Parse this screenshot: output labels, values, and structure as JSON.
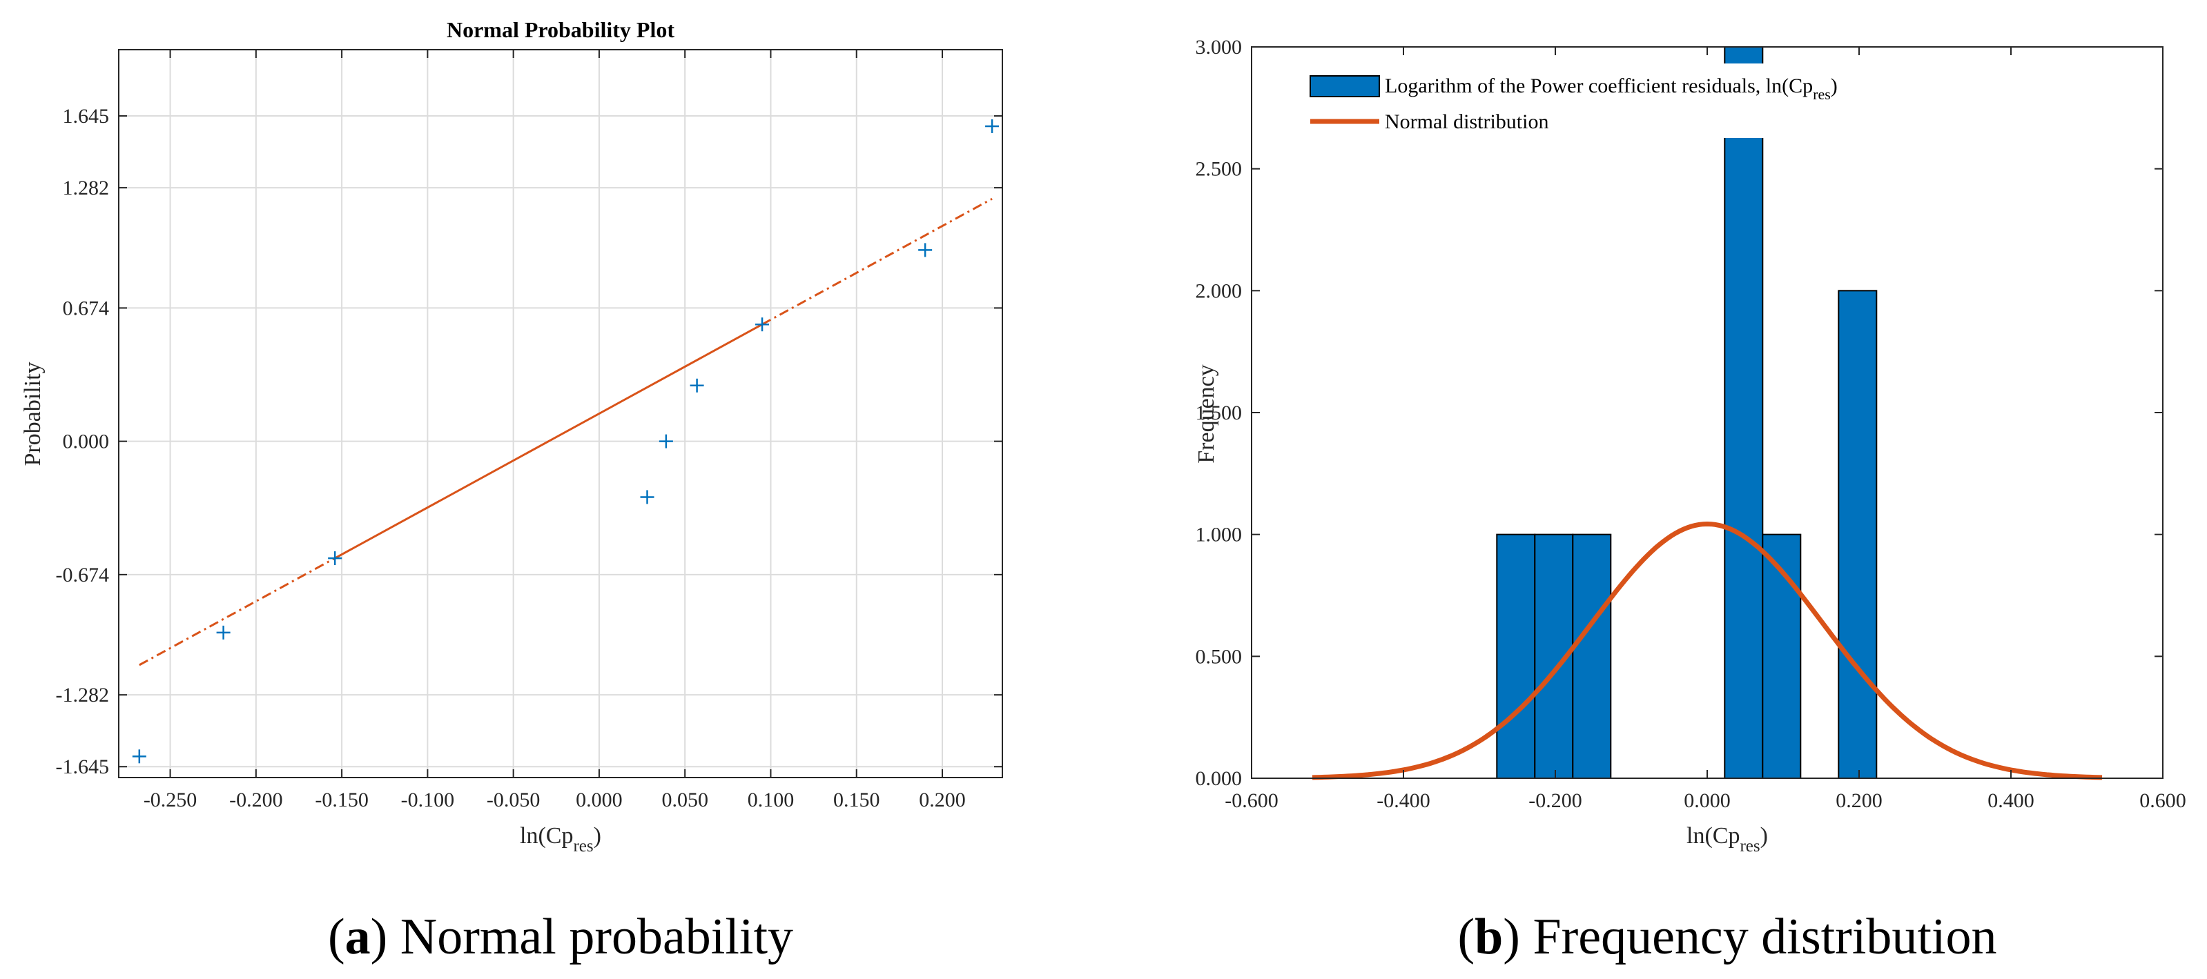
{
  "colors": {
    "marker": "#0072BD",
    "fit_line": "#D95319",
    "bar_fill": "#0072BD",
    "bar_edge": "#000000",
    "curve": "#D95319",
    "grid": "#dcdcdc",
    "axis": "#262626"
  },
  "chart_data": [
    {
      "type": "scatter",
      "title": "Normal Probability Plot",
      "xlabel": "ln(Cp",
      "xlabel_sub": "res",
      "xlabel_close": ")",
      "ylabel": "Probability",
      "xlim": [
        -0.28,
        0.235
      ],
      "ylim": [
        -1.7,
        1.98
      ],
      "grid": true,
      "xticks": [
        -0.25,
        -0.2,
        -0.15,
        -0.1,
        -0.05,
        0.0,
        0.05,
        0.1,
        0.15,
        0.2
      ],
      "xtick_labels": [
        "-0.250",
        "-0.200",
        "-0.150",
        "-0.100",
        "-0.050",
        "0.000",
        "0.050",
        "0.100",
        "0.150",
        "0.200"
      ],
      "yticks": [
        -1.645,
        -1.282,
        -0.674,
        0.0,
        0.674,
        1.282,
        1.645
      ],
      "ytick_labels": [
        "-1.645",
        "-1.282",
        "-0.674",
        "0.000",
        "0.674",
        "1.282",
        "1.645"
      ],
      "points": [
        {
          "x": -0.268,
          "y": -1.593
        },
        {
          "x": -0.219,
          "y": -0.967
        },
        {
          "x": -0.154,
          "y": -0.591
        },
        {
          "x": 0.028,
          "y": -0.282
        },
        {
          "x": 0.039,
          "y": 0.0
        },
        {
          "x": 0.057,
          "y": 0.282
        },
        {
          "x": 0.095,
          "y": 0.591
        },
        {
          "x": 0.19,
          "y": 0.967
        },
        {
          "x": 0.229,
          "y": 1.593
        }
      ],
      "fit_line": {
        "solid": [
          [
            -0.154,
            -0.591
          ],
          [
            0.095,
            0.591
          ]
        ],
        "dashdot_left": [
          [
            -0.268,
            -1.131
          ],
          [
            -0.154,
            -0.591
          ]
        ],
        "dashdot_right": [
          [
            0.095,
            0.591
          ],
          [
            0.229,
            1.226
          ]
        ]
      },
      "caption_letter": "a",
      "caption_text": " Normal probability"
    },
    {
      "type": "bar",
      "xlabel": "ln(Cp",
      "xlabel_sub": "res",
      "xlabel_close": ")",
      "ylabel": "Frequency",
      "xlim": [
        -0.6,
        0.6
      ],
      "ylim": [
        0,
        3
      ],
      "grid": false,
      "xticks": [
        -0.6,
        -0.4,
        -0.2,
        0.0,
        0.2,
        0.4,
        0.6
      ],
      "xtick_labels": [
        "-0.600",
        "-0.400",
        "-0.200",
        "0.000",
        "0.200",
        "0.400",
        "0.600"
      ],
      "yticks": [
        0,
        0.5,
        1.0,
        1.5,
        2.0,
        2.5,
        3.0
      ],
      "ytick_labels": [
        "0.000",
        "0.500",
        "1.000",
        "1.500",
        "2.000",
        "2.500",
        "3.000"
      ],
      "bars": [
        {
          "x0": -0.277,
          "x1": -0.227,
          "value": 1
        },
        {
          "x0": -0.227,
          "x1": -0.177,
          "value": 1
        },
        {
          "x0": -0.177,
          "x1": -0.127,
          "value": 1
        },
        {
          "x0": 0.023,
          "x1": 0.073,
          "value": 3
        },
        {
          "x0": 0.073,
          "x1": 0.123,
          "value": 1
        },
        {
          "x0": 0.173,
          "x1": 0.223,
          "value": 2
        }
      ],
      "normal_curve": {
        "mean": 0.0,
        "sd": 0.153,
        "scale": 0.4,
        "x_range": [
          -0.52,
          0.52
        ]
      },
      "legend": {
        "position": "top-left",
        "items": [
          {
            "label": "Logarithm of the Power coefficient residuals,  ln(Cp",
            "label_sub": "res",
            "label_close": ")",
            "kind": "bar"
          },
          {
            "label": "Normal distribution",
            "kind": "line"
          }
        ]
      },
      "caption_letter": "b",
      "caption_text": " Frequency distribution"
    }
  ]
}
